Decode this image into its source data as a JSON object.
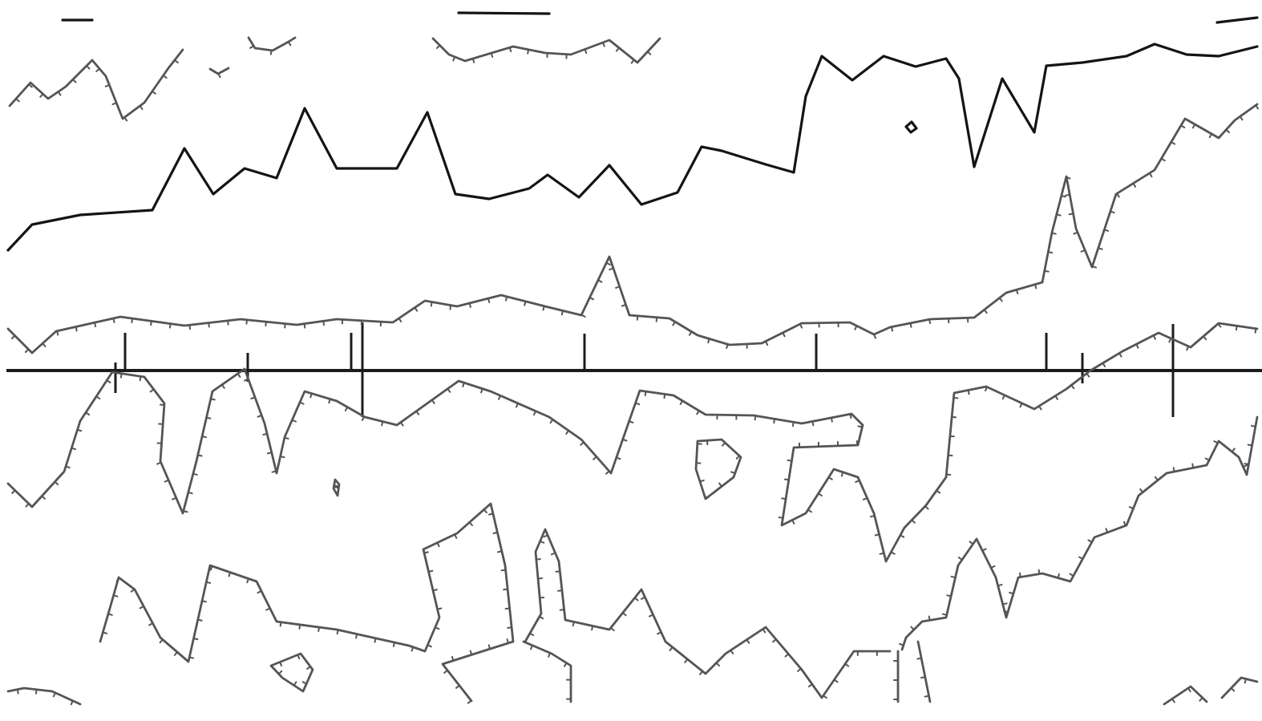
{
  "colors": {
    "background": "#ffffff",
    "dark_line": "#141414",
    "grey_line": "#555555",
    "baseline": "#1c1c1c"
  },
  "figure": {
    "description_visible_text": "",
    "labels": []
  }
}
